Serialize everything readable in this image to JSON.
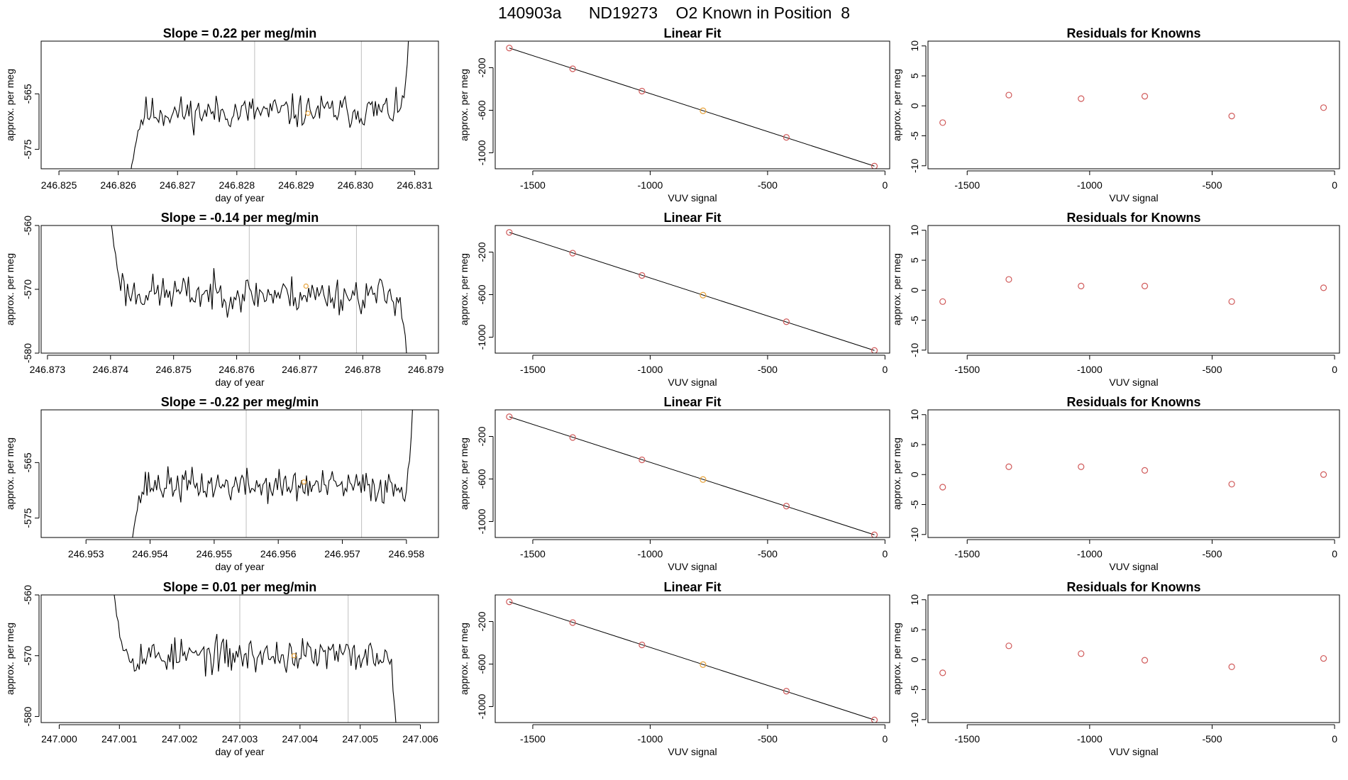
{
  "figure": {
    "title": "140903a      ND19273    O2 Known in Position  8",
    "colors": {
      "fit_point": "#d05a5a",
      "highlight_point": "#e8a33a",
      "trace": "#000000",
      "vline": "#bfbfbf"
    }
  },
  "chart_data": [
    {
      "type": "line",
      "row": 0,
      "title": "Slope =  0.22  per meg/min",
      "xlabel": "day of year",
      "ylabel": "approx. per meg",
      "xlim": [
        246.8247,
        246.8314
      ],
      "ylim": [
        -578.5,
        -555.5
      ],
      "xticks": [
        246.825,
        246.826,
        246.827,
        246.828,
        246.829,
        246.83,
        246.831
      ],
      "xtick_labels": [
        "246.825",
        "246.826",
        "246.827",
        "246.828",
        "246.829",
        "246.830",
        "246.831"
      ],
      "yticks": [
        -565,
        -575
      ],
      "ytick_labels": [
        "-565",
        "-575"
      ],
      "vlines": [
        246.8283,
        246.8301
      ],
      "highlight": {
        "x": 246.8292,
        "y": -568.5
      },
      "trace": {
        "x_start": 246.8262,
        "x_end": 246.8309,
        "base": -568.5,
        "base_end": -568.0,
        "amp": 2.3,
        "start_y": -580,
        "end_y": -554,
        "seed": 11
      }
    },
    {
      "type": "line",
      "row": 1,
      "title": "Slope =  -0.14  per meg/min",
      "xlabel": "day of year",
      "ylabel": "approx. per meg",
      "xlim": [
        246.8729,
        246.8792
      ],
      "ylim": [
        -580,
        -560
      ],
      "xticks": [
        246.873,
        246.874,
        246.875,
        246.876,
        246.877,
        246.878,
        246.879
      ],
      "xtick_labels": [
        "246.873",
        "246.874",
        "246.875",
        "246.876",
        "246.877",
        "246.878",
        "246.879"
      ],
      "yticks": [
        -560,
        -570,
        -580
      ],
      "ytick_labels": [
        "-560",
        "-570",
        "-580"
      ],
      "vlines": [
        246.8762,
        246.8779
      ],
      "highlight": {
        "x": 246.8771,
        "y": -569.5
      },
      "trace": {
        "x_start": 246.874,
        "x_end": 246.8787,
        "base": -570.5,
        "base_end": -571.0,
        "amp": 2.2,
        "start_y": -559,
        "end_y": -581,
        "seed": 23
      }
    },
    {
      "type": "line",
      "row": 2,
      "title": "Slope =  -0.22  per meg/min",
      "xlabel": "day of year",
      "ylabel": "approx. per meg",
      "xlim": [
        246.9523,
        246.9585
      ],
      "ylim": [
        -578.5,
        -555.5
      ],
      "xticks": [
        246.953,
        246.954,
        246.955,
        246.956,
        246.957,
        246.958
      ],
      "xtick_labels": [
        "246.953",
        "246.954",
        "246.955",
        "246.956",
        "246.957",
        "246.958"
      ],
      "yticks": [
        -565,
        -575
      ],
      "ytick_labels": [
        "-565",
        "-575"
      ],
      "vlines": [
        246.9555,
        246.9573
      ],
      "highlight": {
        "x": 246.9564,
        "y": -568.5
      },
      "trace": {
        "x_start": 246.9537,
        "x_end": 246.9581,
        "base": -569.0,
        "base_end": -569.5,
        "amp": 2.3,
        "start_y": -580,
        "end_y": -554,
        "seed": 37
      }
    },
    {
      "type": "line",
      "row": 3,
      "title": "Slope =  0.01  per meg/min",
      "xlabel": "day of year",
      "ylabel": "approx. per meg",
      "xlim": [
        246.9997,
        247.0063
      ],
      "ylim": [
        -581,
        -560
      ],
      "xticks": [
        247.0,
        247.001,
        247.002,
        247.003,
        247.004,
        247.005,
        247.006
      ],
      "xtick_labels": [
        "247.000",
        "247.001",
        "247.002",
        "247.003",
        "247.004",
        "247.005",
        "247.006"
      ],
      "yticks": [
        -560,
        -570,
        -580
      ],
      "ytick_labels": [
        "-560",
        "-570",
        "-580"
      ],
      "vlines": [
        247.003,
        247.0048
      ],
      "highlight": {
        "x": 247.0039,
        "y": -570.0
      },
      "trace": {
        "x_start": 247.0009,
        "x_end": 247.0056,
        "base": -570.0,
        "base_end": -570.0,
        "amp": 2.2,
        "start_y": -559,
        "end_y": -582,
        "seed": 53
      }
    },
    {
      "type": "scatter",
      "row": 0,
      "title": "Linear Fit",
      "xlabel": "VUV signal",
      "ylabel": "approx. per meg",
      "xlim": [
        -1660,
        20
      ],
      "ylim": [
        -1150,
        50
      ],
      "xticks": [
        -1500,
        -1000,
        -500,
        0
      ],
      "xtick_labels": [
        "-1500",
        "-1000",
        "-500",
        "0"
      ],
      "yticks": [
        -200,
        -600,
        -1000
      ],
      "ytick_labels": [
        "-200",
        "-600",
        "-1000"
      ],
      "x": [
        -1600,
        -1330,
        -1035,
        -775,
        -420,
        -45
      ],
      "y": [
        -15,
        -210,
        -420,
        -605,
        -855,
        -1125
      ],
      "highlight_index": 3,
      "fit_line": [
        [
          -1600,
          -15
        ],
        [
          -45,
          -1125
        ]
      ]
    },
    {
      "type": "scatter",
      "row": 1,
      "title": "Linear Fit",
      "xlabel": "VUV signal",
      "ylabel": "approx. per meg",
      "xlim": [
        -1660,
        20
      ],
      "ylim": [
        -1150,
        50
      ],
      "xticks": [
        -1500,
        -1000,
        -500,
        0
      ],
      "xtick_labels": [
        "-1500",
        "-1000",
        "-500",
        "0"
      ],
      "yticks": [
        -200,
        -600,
        -1000
      ],
      "ytick_labels": [
        "-200",
        "-600",
        "-1000"
      ],
      "x": [
        -1600,
        -1330,
        -1035,
        -775,
        -420,
        -45
      ],
      "y": [
        -15,
        -210,
        -420,
        -605,
        -855,
        -1125
      ],
      "highlight_index": 3,
      "fit_line": [
        [
          -1600,
          -15
        ],
        [
          -45,
          -1125
        ]
      ]
    },
    {
      "type": "scatter",
      "row": 2,
      "title": "Linear Fit",
      "xlabel": "VUV signal",
      "ylabel": "approx. per meg",
      "xlim": [
        -1660,
        20
      ],
      "ylim": [
        -1150,
        50
      ],
      "xticks": [
        -1500,
        -1000,
        -500,
        0
      ],
      "xtick_labels": [
        "-1500",
        "-1000",
        "-500",
        "0"
      ],
      "yticks": [
        -200,
        -600,
        -1000
      ],
      "ytick_labels": [
        "-200",
        "-600",
        "-1000"
      ],
      "x": [
        -1600,
        -1330,
        -1035,
        -775,
        -420,
        -45
      ],
      "y": [
        -15,
        -210,
        -420,
        -605,
        -855,
        -1125
      ],
      "highlight_index": 3,
      "fit_line": [
        [
          -1600,
          -15
        ],
        [
          -45,
          -1125
        ]
      ]
    },
    {
      "type": "scatter",
      "row": 3,
      "title": "Linear Fit",
      "xlabel": "VUV signal",
      "ylabel": "approx. per meg",
      "xlim": [
        -1660,
        20
      ],
      "ylim": [
        -1150,
        50
      ],
      "xticks": [
        -1500,
        -1000,
        -500,
        0
      ],
      "xtick_labels": [
        "-1500",
        "-1000",
        "-500",
        "0"
      ],
      "yticks": [
        -200,
        -600,
        -1000
      ],
      "ytick_labels": [
        "-200",
        "-600",
        "-1000"
      ],
      "x": [
        -1600,
        -1330,
        -1035,
        -775,
        -420,
        -45
      ],
      "y": [
        -15,
        -210,
        -420,
        -605,
        -855,
        -1125
      ],
      "highlight_index": 3,
      "fit_line": [
        [
          -1600,
          -15
        ],
        [
          -45,
          -1125
        ]
      ]
    },
    {
      "type": "scatter",
      "row": 0,
      "title": "Residuals for Knowns",
      "xlabel": "VUV signal",
      "ylabel": "approx. per meg",
      "xlim": [
        -1660,
        20
      ],
      "ylim": [
        -10.5,
        10.8
      ],
      "xticks": [
        -1500,
        -1000,
        -500,
        0
      ],
      "xtick_labels": [
        "-1500",
        "-1000",
        "-500",
        "0"
      ],
      "yticks": [
        10,
        5,
        0,
        -5,
        -10
      ],
      "ytick_labels": [
        "10",
        "5",
        "0",
        "-5",
        "-10"
      ],
      "x": [
        -1600,
        -1330,
        -1035,
        -775,
        -420,
        -45
      ],
      "y": [
        -2.8,
        1.8,
        1.2,
        1.6,
        -1.7,
        -0.3
      ]
    },
    {
      "type": "scatter",
      "row": 1,
      "title": "Residuals for Knowns",
      "xlabel": "VUV signal",
      "ylabel": "approx. per meg",
      "xlim": [
        -1660,
        20
      ],
      "ylim": [
        -10.5,
        10.8
      ],
      "xticks": [
        -1500,
        -1000,
        -500,
        0
      ],
      "xtick_labels": [
        "-1500",
        "-1000",
        "-500",
        "0"
      ],
      "yticks": [
        10,
        5,
        0,
        -5,
        -10
      ],
      "ytick_labels": [
        "10",
        "5",
        "0",
        "-5",
        "-10"
      ],
      "x": [
        -1600,
        -1330,
        -1035,
        -775,
        -420,
        -45
      ],
      "y": [
        -1.9,
        1.8,
        0.7,
        0.7,
        -1.9,
        0.4
      ]
    },
    {
      "type": "scatter",
      "row": 2,
      "title": "Residuals for Knowns",
      "xlabel": "VUV signal",
      "ylabel": "approx. per meg",
      "xlim": [
        -1660,
        20
      ],
      "ylim": [
        -10.5,
        10.8
      ],
      "xticks": [
        -1500,
        -1000,
        -500,
        0
      ],
      "xtick_labels": [
        "-1500",
        "-1000",
        "-500",
        "0"
      ],
      "yticks": [
        10,
        5,
        0,
        -5,
        -10
      ],
      "ytick_labels": [
        "10",
        "5",
        "0",
        "-5",
        "-10"
      ],
      "x": [
        -1600,
        -1330,
        -1035,
        -775,
        -420,
        -45
      ],
      "y": [
        -2.1,
        1.3,
        1.3,
        0.7,
        -1.6,
        0.0
      ]
    },
    {
      "type": "scatter",
      "row": 3,
      "title": "Residuals for Knowns",
      "xlabel": "VUV signal",
      "ylabel": "approx. per meg",
      "xlim": [
        -1660,
        20
      ],
      "ylim": [
        -10.5,
        10.8
      ],
      "xticks": [
        -1500,
        -1000,
        -500,
        0
      ],
      "xtick_labels": [
        "-1500",
        "-1000",
        "-500",
        "0"
      ],
      "yticks": [
        10,
        5,
        0,
        -5,
        -10
      ],
      "ytick_labels": [
        "10",
        "5",
        "0",
        "-5",
        "-10"
      ],
      "x": [
        -1600,
        -1330,
        -1035,
        -775,
        -420,
        -45
      ],
      "y": [
        -2.2,
        2.3,
        1.0,
        -0.1,
        -1.2,
        0.2
      ]
    }
  ]
}
